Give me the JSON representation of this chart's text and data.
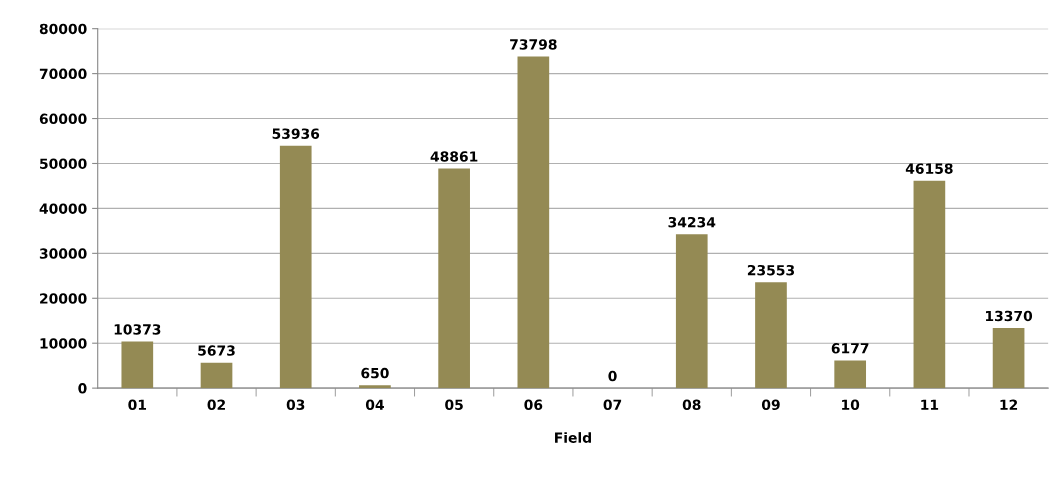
{
  "chart_data": {
    "type": "bar",
    "xlabel": "Field",
    "categories": [
      "01",
      "02",
      "03",
      "04",
      "05",
      "06",
      "07",
      "08",
      "09",
      "10",
      "11",
      "12"
    ],
    "values": [
      10373,
      5673,
      53936,
      650,
      48861,
      73798,
      0,
      34234,
      23553,
      6177,
      46158,
      13370
    ],
    "color": "#948a54",
    "ylim": [
      0,
      80000
    ],
    "yticks": [
      0,
      10000,
      20000,
      30000,
      40000,
      50000,
      60000,
      70000,
      80000
    ],
    "grid": "y",
    "data_labels": true,
    "legend": false
  }
}
